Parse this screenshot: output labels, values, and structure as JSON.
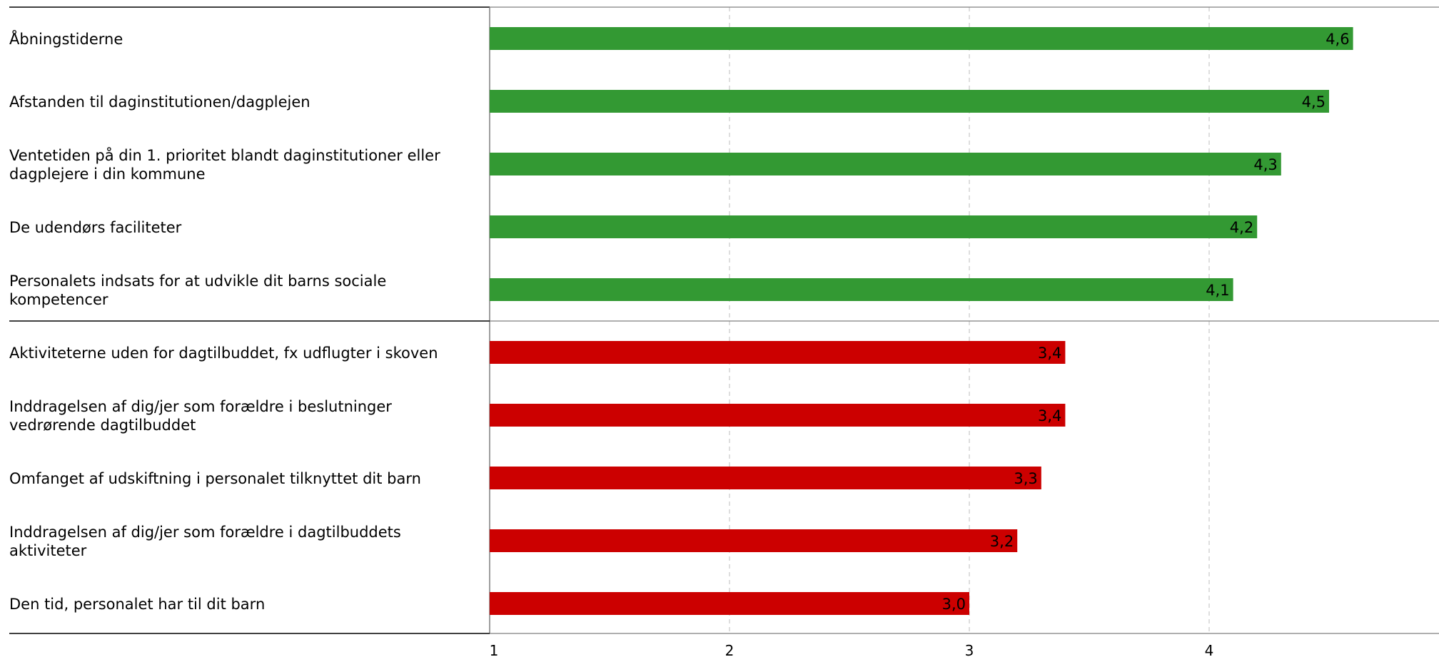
{
  "chart_data": {
    "type": "bar",
    "orientation": "horizontal",
    "title": "",
    "xlabel": "",
    "ylabel": "",
    "xlim": [
      1,
      5
    ],
    "x_ticks": [
      "1",
      "2",
      "3",
      "4"
    ],
    "grid": "vertical dashed",
    "legend": "none",
    "colors": {
      "high": "#339933",
      "low": "#cc0000",
      "grid": "#c8c8c8",
      "axis": "#7f7f7f",
      "separator": "#000000"
    },
    "groups": [
      {
        "name": "high",
        "items": [
          {
            "category": [
              "Åbningstiderne"
            ],
            "value": 4.6,
            "label": "4,6"
          },
          {
            "category": [
              "Afstanden til daginstitutionen/dagplejen"
            ],
            "value": 4.5,
            "label": "4,5"
          },
          {
            "category": [
              "Ventetiden på din 1. prioritet blandt daginstitutioner eller",
              "dagplejere i din kommune"
            ],
            "value": 4.3,
            "label": "4,3"
          },
          {
            "category": [
              "De udendørs faciliteter"
            ],
            "value": 4.2,
            "label": "4,2"
          },
          {
            "category": [
              "Personalets indsats for at udvikle dit barns sociale",
              "kompetencer"
            ],
            "value": 4.1,
            "label": "4,1"
          }
        ]
      },
      {
        "name": "low",
        "items": [
          {
            "category": [
              "Aktiviteterne uden for dagtilbuddet, fx udflugter i skoven"
            ],
            "value": 3.4,
            "label": "3,4"
          },
          {
            "category": [
              "Inddragelsen af dig/jer som forældre i beslutninger",
              "vedrørende dagtilbuddet"
            ],
            "value": 3.4,
            "label": "3,4"
          },
          {
            "category": [
              "Omfanget af udskiftning i personalet tilknyttet dit barn"
            ],
            "value": 3.3,
            "label": "3,3"
          },
          {
            "category": [
              "Inddragelsen af dig/jer som forældre i dagtilbuddets",
              "aktiviteter"
            ],
            "value": 3.2,
            "label": "3,2"
          },
          {
            "category": [
              "Den tid, personalet har til dit barn"
            ],
            "value": 3.0,
            "label": "3,0"
          }
        ]
      }
    ]
  }
}
